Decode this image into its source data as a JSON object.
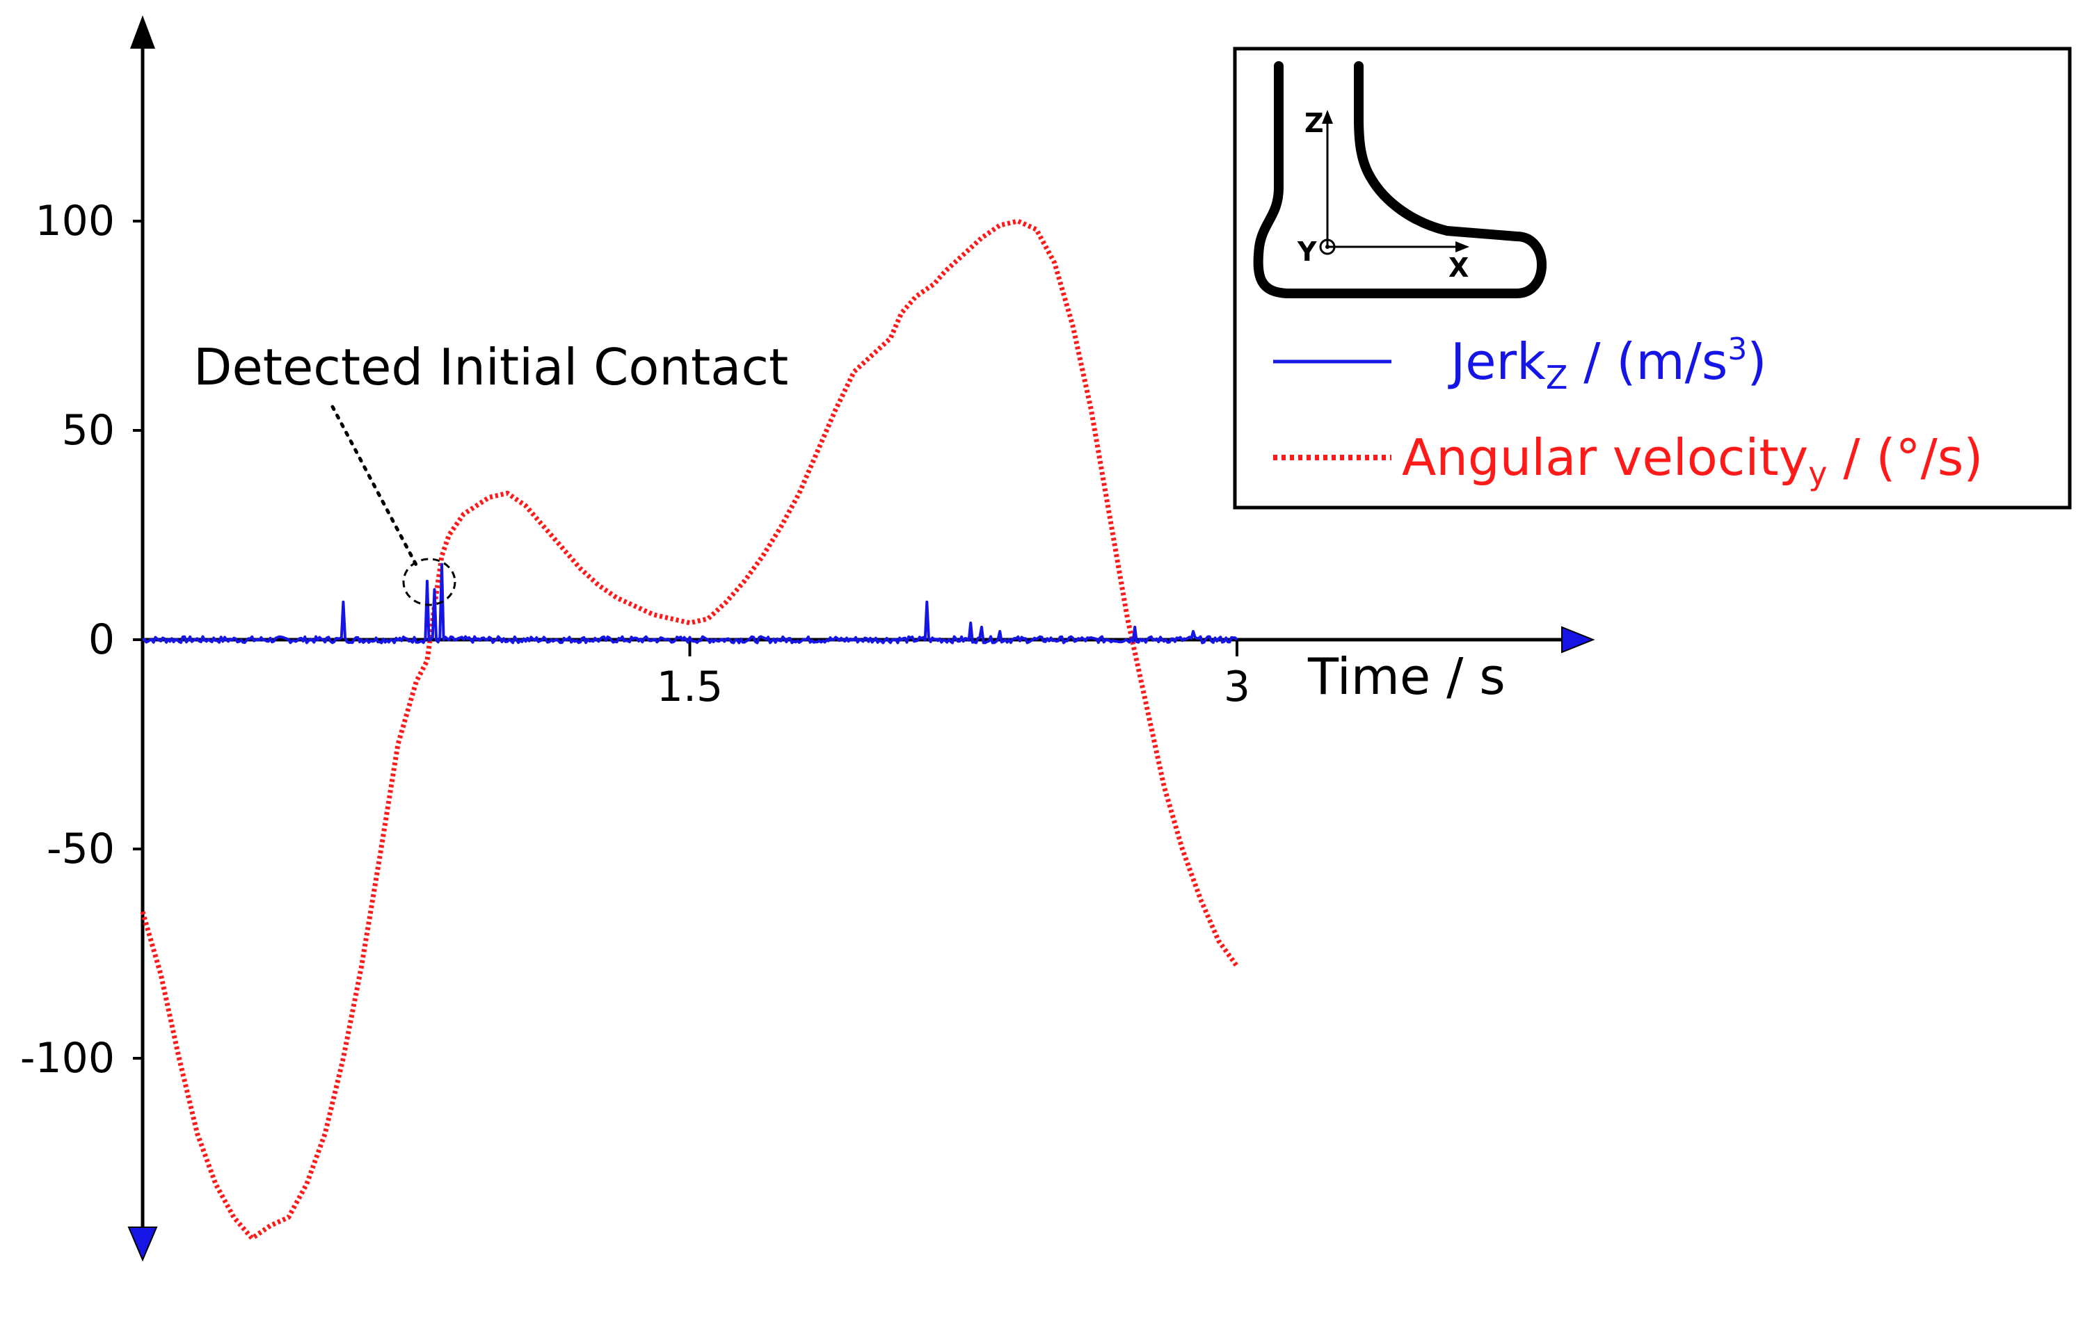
{
  "chart_data": {
    "type": "line",
    "xlabel": "Time / s",
    "ylabel": "",
    "xlim": [
      0,
      3
    ],
    "ylim": [
      -145,
      145
    ],
    "x_ticks": [
      {
        "value": 1.5,
        "label": "1.5"
      },
      {
        "value": 3,
        "label": "3"
      }
    ],
    "y_ticks": [
      {
        "value": 100,
        "label": "100"
      },
      {
        "value": 50,
        "label": "50"
      },
      {
        "value": 0,
        "label": "0"
      },
      {
        "value": -50,
        "label": "-50"
      },
      {
        "value": -100,
        "label": "-100"
      }
    ],
    "annotation": {
      "text": "Detected Initial Contact",
      "x": 0.77,
      "y": 10
    },
    "legend": {
      "placement": "top-right",
      "entries": [
        {
          "series": "jerk",
          "label_main": "Jerk",
          "label_sub": "Z",
          "label_rest": " / (m/s",
          "label_sup": "3",
          "label_end": ")",
          "color": "#1515e6",
          "style": "solid"
        },
        {
          "series": "angular",
          "label_main": "Angular velocity",
          "label_sub": "y",
          "label_rest": " / (°/s)",
          "color": "#ff1a1a",
          "style": "dotted"
        }
      ],
      "foot_axes": {
        "z": "Z",
        "x": "X",
        "y": "Y"
      }
    },
    "series": [
      {
        "key": "angular",
        "color": "#ff1a1a",
        "style": "dotted",
        "points": [
          [
            0.0,
            -65
          ],
          [
            0.05,
            -80
          ],
          [
            0.1,
            -100
          ],
          [
            0.15,
            -118
          ],
          [
            0.2,
            -130
          ],
          [
            0.25,
            -138
          ],
          [
            0.3,
            -143
          ],
          [
            0.35,
            -140
          ],
          [
            0.4,
            -138
          ],
          [
            0.45,
            -130
          ],
          [
            0.5,
            -118
          ],
          [
            0.55,
            -100
          ],
          [
            0.6,
            -78
          ],
          [
            0.65,
            -52
          ],
          [
            0.7,
            -25
          ],
          [
            0.75,
            -10
          ],
          [
            0.78,
            -5
          ],
          [
            0.8,
            8
          ],
          [
            0.82,
            20
          ],
          [
            0.84,
            25
          ],
          [
            0.88,
            30
          ],
          [
            0.95,
            34
          ],
          [
            1.0,
            35
          ],
          [
            1.05,
            32
          ],
          [
            1.1,
            27
          ],
          [
            1.15,
            22
          ],
          [
            1.2,
            17
          ],
          [
            1.25,
            13
          ],
          [
            1.3,
            10
          ],
          [
            1.35,
            8
          ],
          [
            1.4,
            6
          ],
          [
            1.45,
            5
          ],
          [
            1.5,
            4
          ],
          [
            1.55,
            5
          ],
          [
            1.6,
            9
          ],
          [
            1.65,
            14
          ],
          [
            1.7,
            20
          ],
          [
            1.75,
            27
          ],
          [
            1.8,
            35
          ],
          [
            1.85,
            45
          ],
          [
            1.9,
            55
          ],
          [
            1.95,
            64
          ],
          [
            2.0,
            68
          ],
          [
            2.05,
            72
          ],
          [
            2.08,
            78
          ],
          [
            2.12,
            82
          ],
          [
            2.17,
            85
          ],
          [
            2.2,
            88
          ],
          [
            2.25,
            92
          ],
          [
            2.3,
            96
          ],
          [
            2.35,
            99
          ],
          [
            2.4,
            100
          ],
          [
            2.45,
            98
          ],
          [
            2.5,
            90
          ],
          [
            2.55,
            75
          ],
          [
            2.6,
            55
          ],
          [
            2.65,
            30
          ],
          [
            2.7,
            5
          ],
          [
            2.75,
            -15
          ],
          [
            2.8,
            -35
          ],
          [
            2.85,
            -50
          ],
          [
            2.9,
            -62
          ],
          [
            2.93,
            -68
          ],
          [
            2.95,
            -72
          ],
          [
            3.0,
            -78
          ]
        ]
      },
      {
        "key": "jerk",
        "color": "#1515e6",
        "style": "solid",
        "baseline": 0.5,
        "spikes": [
          [
            0.55,
            9
          ],
          [
            0.78,
            14
          ],
          [
            0.8,
            12
          ],
          [
            0.82,
            18
          ],
          [
            2.15,
            9
          ],
          [
            2.27,
            4
          ],
          [
            2.3,
            3
          ],
          [
            2.35,
            2
          ],
          [
            2.72,
            3
          ],
          [
            2.88,
            2
          ]
        ]
      }
    ]
  }
}
